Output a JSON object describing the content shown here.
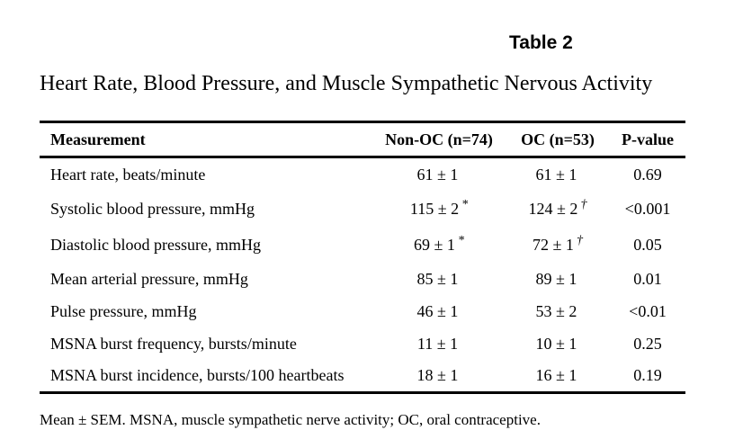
{
  "table_label": "Table 2",
  "title": "Heart Rate, Blood Pressure, and Muscle Sympathetic Nervous Activity",
  "columns": {
    "measurement": "Measurement",
    "non_oc": "Non-OC (n=74)",
    "oc": "OC (n=53)",
    "pvalue": "P-value"
  },
  "rows": [
    {
      "measurement": "Heart rate, beats/minute",
      "non_oc": "61 ± 1",
      "non_oc_mark": "",
      "oc": "61 ± 1",
      "oc_mark": "",
      "pvalue": "0.69"
    },
    {
      "measurement": "Systolic blood pressure, mmHg",
      "non_oc": "115 ± 2",
      "non_oc_mark": "*",
      "oc": "124 ± 2",
      "oc_mark": "†",
      "pvalue": "<0.001"
    },
    {
      "measurement": "Diastolic blood pressure, mmHg",
      "non_oc": "69 ± 1",
      "non_oc_mark": "*",
      "oc": "72 ± 1",
      "oc_mark": "†",
      "pvalue": "0.05"
    },
    {
      "measurement": "Mean arterial pressure, mmHg",
      "non_oc": "85 ± 1",
      "non_oc_mark": "",
      "oc": "89 ± 1",
      "oc_mark": "",
      "pvalue": "0.01"
    },
    {
      "measurement": "Pulse pressure, mmHg",
      "non_oc": "46 ± 1",
      "non_oc_mark": "",
      "oc": "53 ± 2",
      "oc_mark": "",
      "pvalue": "<0.01"
    },
    {
      "measurement": "MSNA burst frequency, bursts/minute",
      "non_oc": "11 ± 1",
      "non_oc_mark": "",
      "oc": "10 ± 1",
      "oc_mark": "",
      "pvalue": "0.25"
    },
    {
      "measurement": "MSNA burst incidence, bursts/100 heartbeats",
      "non_oc": "18 ± 1",
      "non_oc_mark": "",
      "oc": "16 ± 1",
      "oc_mark": "",
      "pvalue": "0.19"
    }
  ],
  "footnote": "Mean ± SEM. MSNA, muscle sympathetic nerve activity; OC, oral contraceptive."
}
